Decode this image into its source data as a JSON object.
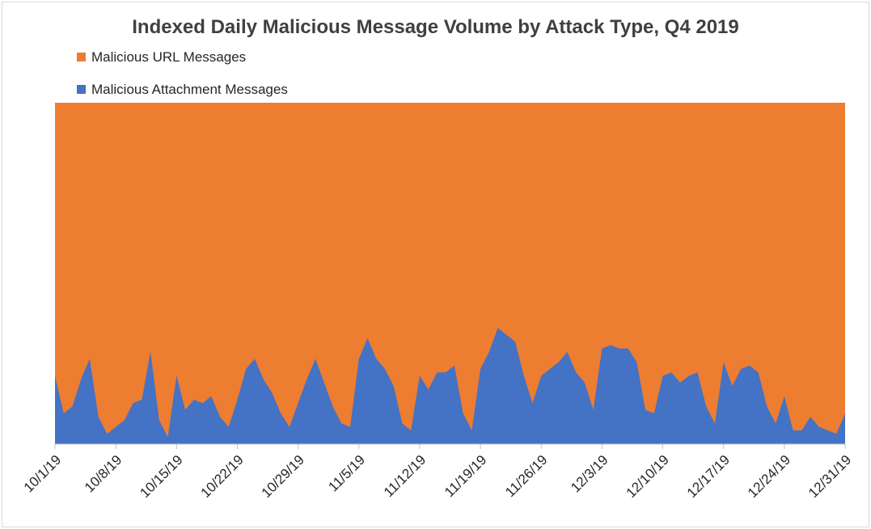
{
  "chart_data": {
    "type": "area",
    "stacked": true,
    "normalized": true,
    "title": "Indexed Daily Malicious Message Volume by Attack Type, Q4 2019",
    "x_start": "2019-10-01",
    "x_end": "2019-12-31",
    "x_tick_labels": [
      "10/1/19",
      "10/8/19",
      "10/15/19",
      "10/22/19",
      "10/29/19",
      "11/5/19",
      "11/12/19",
      "11/19/19",
      "11/26/19",
      "12/3/19",
      "12/10/19",
      "12/17/19",
      "12/24/19",
      "12/31/19"
    ],
    "ylim": [
      0,
      1
    ],
    "y_axis_labels_shown": false,
    "legend_position": "top-left",
    "series": [
      {
        "name": "Malicious Attachment Messages",
        "color": "#4472C4",
        "share": [
          0.2,
          0.09,
          0.11,
          0.19,
          0.25,
          0.08,
          0.03,
          0.05,
          0.07,
          0.12,
          0.13,
          0.27,
          0.07,
          0.02,
          0.2,
          0.1,
          0.13,
          0.12,
          0.14,
          0.08,
          0.05,
          0.13,
          0.22,
          0.25,
          0.19,
          0.15,
          0.09,
          0.05,
          0.12,
          0.19,
          0.25,
          0.18,
          0.11,
          0.06,
          0.05,
          0.25,
          0.31,
          0.25,
          0.22,
          0.17,
          0.06,
          0.04,
          0.2,
          0.16,
          0.21,
          0.21,
          0.23,
          0.09,
          0.04,
          0.22,
          0.27,
          0.34,
          0.32,
          0.3,
          0.2,
          0.12,
          0.2,
          0.22,
          0.24,
          0.27,
          0.21,
          0.18,
          0.1,
          0.28,
          0.29,
          0.28,
          0.28,
          0.24,
          0.1,
          0.09,
          0.2,
          0.21,
          0.18,
          0.2,
          0.21,
          0.11,
          0.06,
          0.24,
          0.17,
          0.22,
          0.23,
          0.21,
          0.11,
          0.06,
          0.14,
          0.04,
          0.04,
          0.08,
          0.05,
          0.04,
          0.03,
          0.09
        ]
      },
      {
        "name": "Malicious URL Messages",
        "color": "#ED7D31",
        "share_rule": "1 - Malicious Attachment Messages share"
      }
    ]
  }
}
